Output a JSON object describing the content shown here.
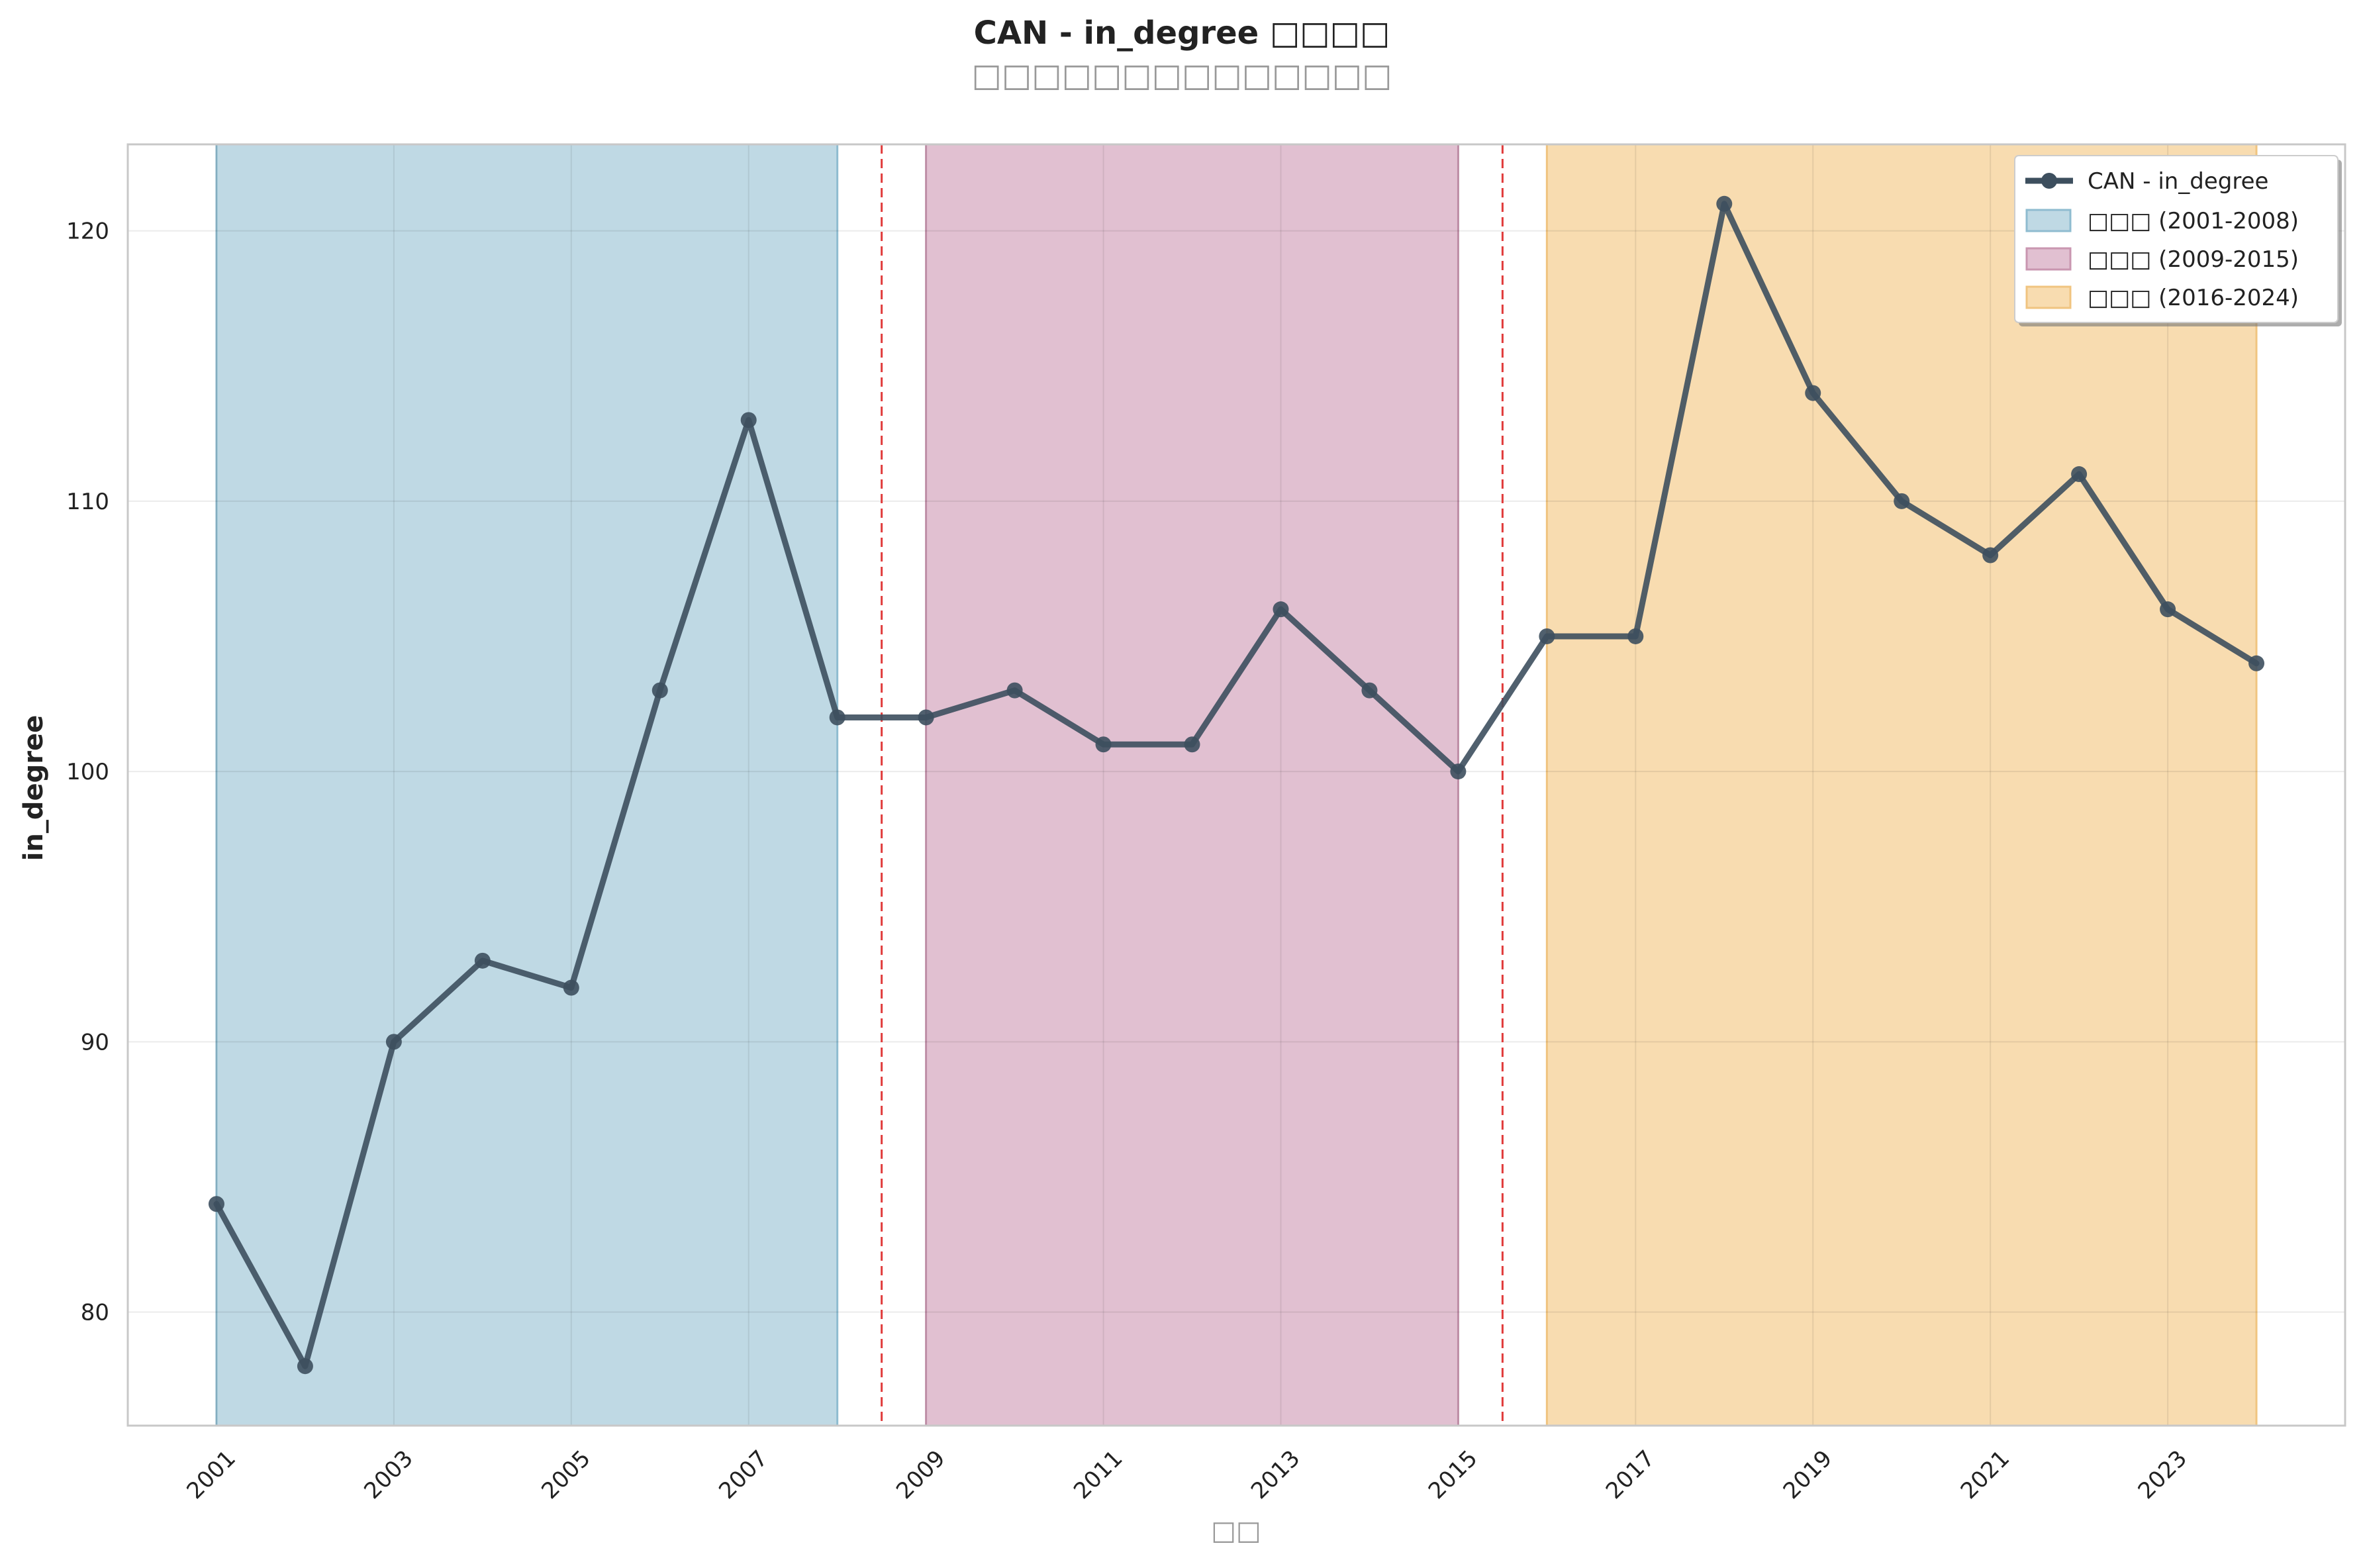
{
  "chart_data": {
    "type": "line",
    "title": "CAN - in_degree □□□□",
    "subtitle": "□□□□□□□□□□□□□□",
    "xlabel": "□□",
    "ylabel": "in_degree",
    "ylim": [
      75.8,
      123.2
    ],
    "xlim": [
      2000,
      2025
    ],
    "yticks": [
      80,
      90,
      100,
      110,
      120
    ],
    "xticks": [
      2001,
      2003,
      2005,
      2007,
      2009,
      2011,
      2013,
      2015,
      2017,
      2019,
      2021,
      2023
    ],
    "grid": true,
    "legend_position": "top-right",
    "series": [
      {
        "name": "CAN - in_degree",
        "color": "#3d4f5e",
        "x": [
          2001,
          2002,
          2003,
          2004,
          2005,
          2006,
          2007,
          2008,
          2009,
          2010,
          2011,
          2012,
          2013,
          2014,
          2015,
          2016,
          2017,
          2018,
          2019,
          2020,
          2021,
          2022,
          2023,
          2024
        ],
        "values": [
          84,
          78,
          90,
          93,
          92,
          103,
          113,
          102,
          102,
          103,
          101,
          101,
          106,
          103,
          100,
          105,
          105,
          121,
          114,
          110,
          108,
          111,
          106,
          104
        ]
      }
    ],
    "periods": [
      {
        "label": "□□□ (2001-2008)",
        "start": 2001,
        "end": 2008,
        "color": "#bfd9e4",
        "edge": "#8fbcd0"
      },
      {
        "label": "□□□ (2009-2015)",
        "start": 2009,
        "end": 2015,
        "color": "#e1c0d1",
        "edge": "#c996b0"
      },
      {
        "label": "□□□ (2016-2024)",
        "start": 2016,
        "end": 2024,
        "color": "#f8dcb0",
        "edge": "#f0c480"
      }
    ],
    "dividers": [
      2008.5,
      2015.5
    ],
    "divider_color": "#e03b3b"
  }
}
